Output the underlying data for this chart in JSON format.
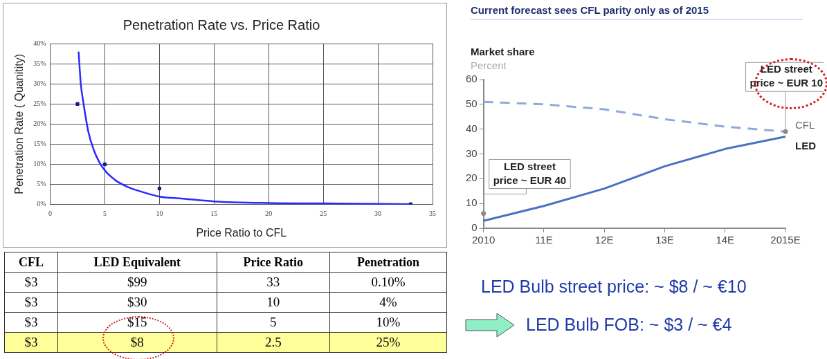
{
  "chart_data": [
    {
      "type": "scatter",
      "title": "Penetration Rate vs. Price Ratio",
      "xlabel": "Price Ratio to CFL",
      "ylabel": "Penetration Rate ( Quanitity)",
      "xlim": [
        0,
        35
      ],
      "xticks": [
        0,
        5,
        10,
        15,
        20,
        25,
        30,
        35
      ],
      "ylim": [
        0,
        40
      ],
      "yticks": [
        {
          "value": 0,
          "label": "0%"
        },
        {
          "value": 5,
          "label": "5%"
        },
        {
          "value": 10,
          "label": "10%"
        },
        {
          "value": 15,
          "label": "15%"
        },
        {
          "value": 20,
          "label": "20%"
        },
        {
          "value": 25,
          "label": "25%"
        },
        {
          "value": 30,
          "label": "30%"
        },
        {
          "value": 35,
          "label": "35%"
        },
        {
          "value": 40,
          "label": "40%"
        }
      ],
      "grid": true,
      "marker": "square",
      "series": [
        {
          "color": "#1a1a80",
          "x": [
            2.5,
            5,
            10,
            33
          ],
          "values": [
            25,
            10,
            4,
            0.1
          ]
        },
        {
          "type": "line",
          "color": "#2a2aff",
          "marker": "none",
          "x": [
            2.6,
            2.8,
            3,
            3.5,
            4,
            4.5,
            5,
            6,
            7,
            8,
            10,
            12,
            15,
            20,
            25,
            33
          ],
          "values": [
            38,
            30,
            26,
            18,
            13.5,
            10.5,
            8.5,
            6,
            4.5,
            3.5,
            2,
            1.5,
            0.8,
            0.4,
            0.3,
            0.1
          ]
        }
      ]
    },
    {
      "type": "line",
      "title": "Current forecast sees CFL parity only as of 2015",
      "ylabel": "Market share",
      "subtitle": "Percent",
      "categories": [
        "2010",
        "11E",
        "12E",
        "13E",
        "14E",
        "2015E"
      ],
      "ylim": [
        0,
        60
      ],
      "yticks": [
        0,
        10,
        20,
        30,
        40,
        50,
        60
      ],
      "grid": false,
      "marker": "none",
      "series": [
        {
          "name": "CFL",
          "color": "#8fa9dc",
          "line_style": "dashed",
          "values": [
            51,
            50,
            48,
            44,
            41,
            39
          ]
        },
        {
          "name": "LED",
          "color": "#4a72c4",
          "line_style": "solid",
          "values": [
            3,
            9,
            16,
            25,
            32,
            37
          ]
        }
      ],
      "annotations": [
        {
          "text": "LED street price ~ EUR 40",
          "x": "2010",
          "y": 6
        },
        {
          "text": "LED street price ~ EUR 10",
          "x": "2015E",
          "y": 39
        }
      ]
    },
    {
      "type": "other",
      "categories": [
        "CFL",
        "LED Equivalent",
        "Price Ratio",
        "Penetration"
      ],
      "cell_labels": [
        [
          "$3",
          "$99",
          "33",
          "0.10%"
        ],
        [
          "$3",
          "$30",
          "10",
          "4%"
        ],
        [
          "$3",
          "$15",
          "5",
          "10%"
        ],
        [
          "$3",
          "$8",
          "2.5",
          "25%"
        ]
      ],
      "colors": [
        null,
        null,
        null,
        "#ffff99"
      ],
      "annotations": [
        "LED Bulb street price: ~ $8 / ~ €10",
        "LED Bulb FOB: ~ $3 / ~ €4"
      ]
    }
  ]
}
